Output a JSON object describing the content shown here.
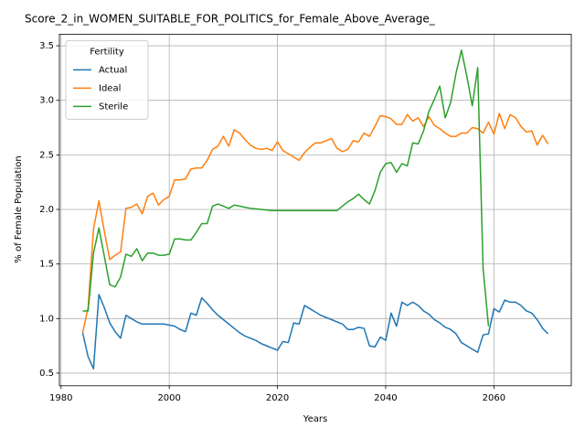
{
  "chart_data": {
    "type": "line",
    "title": "Score_2_in_WOMEN_SUITABLE_FOR_POLITICS_for_Female_Above_Average_",
    "xlabel": "Years",
    "ylabel": "% of Female Population",
    "x": [
      1984,
      1985,
      1986,
      1987,
      1988,
      1989,
      1990,
      1991,
      1992,
      1993,
      1994,
      1995,
      1996,
      1997,
      1998,
      1999,
      2000,
      2001,
      2002,
      2003,
      2004,
      2005,
      2006,
      2007,
      2008,
      2009,
      2010,
      2011,
      2012,
      2013,
      2014,
      2015,
      2016,
      2017,
      2018,
      2019,
      2020,
      2021,
      2022,
      2023,
      2024,
      2025,
      2026,
      2027,
      2028,
      2029,
      2030,
      2031,
      2032,
      2033,
      2034,
      2035,
      2036,
      2037,
      2038,
      2039,
      2040,
      2041,
      2042,
      2043,
      2044,
      2045,
      2046,
      2047,
      2048,
      2049,
      2050,
      2051,
      2052,
      2053,
      2054,
      2055,
      2056,
      2057,
      2058,
      2059,
      2060,
      2061,
      2062,
      2063,
      2064,
      2065,
      2066,
      2067,
      2068,
      2069,
      2070
    ],
    "series": [
      {
        "name": "Actual",
        "color": "#1f77b4",
        "values": [
          0.87,
          0.65,
          0.54,
          1.22,
          1.1,
          0.96,
          0.88,
          0.82,
          1.03,
          1.0,
          0.97,
          0.95,
          0.95,
          0.95,
          0.95,
          0.95,
          0.94,
          0.93,
          0.9,
          0.88,
          1.05,
          1.03,
          1.19,
          1.14,
          1.08,
          1.03,
          0.99,
          0.95,
          0.91,
          0.87,
          0.84,
          0.82,
          0.8,
          0.77,
          0.75,
          0.73,
          0.71,
          0.79,
          0.78,
          0.96,
          0.95,
          1.12,
          1.09,
          1.06,
          1.03,
          1.01,
          0.99,
          0.97,
          0.95,
          0.9,
          0.9,
          0.92,
          0.91,
          0.75,
          0.74,
          0.83,
          0.8,
          1.05,
          0.93,
          1.15,
          1.12,
          1.15,
          1.12,
          1.07,
          1.04,
          0.99,
          0.96,
          0.92,
          0.9,
          0.86,
          0.78,
          0.75,
          0.72,
          0.69,
          0.85,
          0.86,
          1.09,
          1.06,
          1.17,
          1.15,
          1.15,
          1.12,
          1.07,
          1.05,
          0.99,
          0.91,
          0.86
        ]
      },
      {
        "name": "Ideal",
        "color": "#ff7f0e",
        "values": [
          0.87,
          1.1,
          1.82,
          2.08,
          1.8,
          1.54,
          1.58,
          1.61,
          2.01,
          2.02,
          2.05,
          1.96,
          2.12,
          2.15,
          2.04,
          2.09,
          2.12,
          2.27,
          2.27,
          2.28,
          2.37,
          2.38,
          2.38,
          2.45,
          2.55,
          2.58,
          2.67,
          2.58,
          2.73,
          2.7,
          2.64,
          2.59,
          2.56,
          2.55,
          2.56,
          2.54,
          2.62,
          2.54,
          2.51,
          2.48,
          2.45,
          2.52,
          2.57,
          2.61,
          2.61,
          2.63,
          2.65,
          2.56,
          2.53,
          2.55,
          2.63,
          2.62,
          2.7,
          2.67,
          2.76,
          2.86,
          2.85,
          2.83,
          2.78,
          2.78,
          2.87,
          2.81,
          2.84,
          2.76,
          2.85,
          2.77,
          2.74,
          2.7,
          2.67,
          2.67,
          2.7,
          2.7,
          2.75,
          2.74,
          2.7,
          2.8,
          2.69,
          2.88,
          2.74,
          2.87,
          2.84,
          2.76,
          2.71,
          2.72,
          2.59,
          2.68,
          2.6
        ]
      },
      {
        "name": "Sterile",
        "color": "#2ca02c",
        "values": [
          1.07,
          1.07,
          1.6,
          1.83,
          1.57,
          1.31,
          1.29,
          1.38,
          1.59,
          1.57,
          1.64,
          1.53,
          1.6,
          1.6,
          1.58,
          1.58,
          1.59,
          1.73,
          1.73,
          1.72,
          1.72,
          1.79,
          1.87,
          1.87,
          2.03,
          2.05,
          2.03,
          2.01,
          2.04,
          2.03,
          2.02,
          2.01,
          2.005,
          2.0,
          1.995,
          1.99,
          1.99,
          1.99,
          1.99,
          1.99,
          1.99,
          1.99,
          1.99,
          1.99,
          1.99,
          1.99,
          1.99,
          1.99,
          2.03,
          2.07,
          2.1,
          2.14,
          2.09,
          2.05,
          2.17,
          2.34,
          2.42,
          2.43,
          2.34,
          2.42,
          2.4,
          2.61,
          2.6,
          2.72,
          2.9,
          3.01,
          3.13,
          2.84,
          2.98,
          3.25,
          3.46,
          3.22,
          2.95,
          3.3,
          1.46,
          0.93,
          null,
          null,
          null,
          null,
          null,
          null,
          null,
          null,
          null,
          null,
          null
        ]
      }
    ],
    "xlim": [
      1979.7,
      2074.3
    ],
    "xticks": [
      1980,
      2000,
      2020,
      2040,
      2060
    ],
    "ylim": [
      0.384,
      3.606
    ],
    "yticks": [
      0.5,
      {
        "value": 1,
        "label": "1.0"
      },
      1.5,
      {
        "value": 2,
        "label": "2.0"
      },
      2.5,
      {
        "value": 3,
        "label": "3.0"
      },
      3.5
    ],
    "grid": true,
    "legend": {
      "title": "Fertility",
      "corner": "upper-left"
    }
  }
}
